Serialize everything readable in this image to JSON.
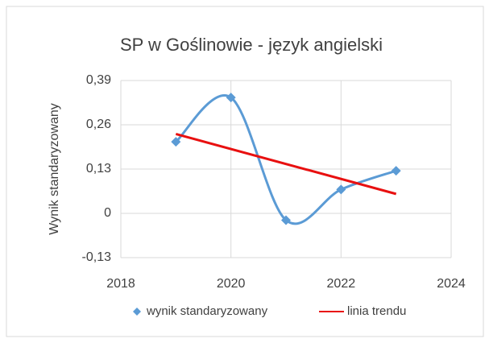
{
  "chart_data": {
    "type": "line",
    "title": "SP w Goślinowie - język angielski",
    "y_label": "Wynik standaryzowany",
    "series": [
      {
        "name": "wynik standaryzowany",
        "color": "#5b9bd5",
        "x": [
          2019,
          2020,
          2021,
          2022,
          2023
        ],
        "values": [
          0.21,
          0.34,
          -0.02,
          0.07,
          0.125
        ]
      },
      {
        "name": "linia trendu",
        "color": "#e81010",
        "x": [
          2019,
          2023
        ],
        "values": [
          0.233,
          0.057
        ]
      }
    ],
    "xlim": [
      2018,
      2024
    ],
    "xticks": [
      2018,
      2020,
      2022,
      2024
    ],
    "ylim": [
      -0.13,
      0.39
    ],
    "yticks": [
      {
        "value": -0.13,
        "label": "-0,13"
      },
      0,
      {
        "value": 0.13,
        "label": "0,13"
      },
      {
        "value": 0.26,
        "label": "0,26"
      },
      {
        "value": 0.39,
        "label": "0,39"
      }
    ],
    "grid": true,
    "legend": "bottom"
  }
}
